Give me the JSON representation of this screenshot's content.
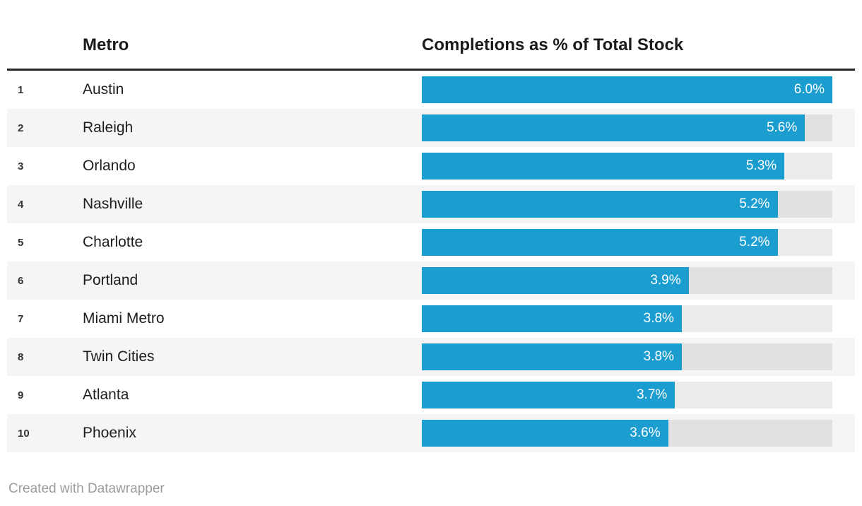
{
  "header": {
    "rank_label": "",
    "metro_label": "Metro",
    "value_label": "Completions as % of Total Stock"
  },
  "footer": {
    "attribution": "Created with Datawrapper"
  },
  "colors": {
    "bar": "#1c9dd0",
    "stripe": "#f5f5f5",
    "track": "rgba(0,0,0,0.08)",
    "rule": "#262626",
    "bar_label_text": "#ffffff"
  },
  "chart_data": {
    "type": "bar",
    "orientation": "horizontal",
    "title": "",
    "xlabel": "Completions as % of Total Stock",
    "ylabel": "Metro",
    "columns": [
      "Metro",
      "Completions as % of Total Stock"
    ],
    "ranks": [
      1,
      2,
      3,
      4,
      5,
      6,
      7,
      8,
      9,
      10
    ],
    "categories": [
      "Austin",
      "Raleigh",
      "Orlando",
      "Nashville",
      "Charlotte",
      "Portland",
      "Miami Metro",
      "Twin Cities",
      "Atlanta",
      "Phoenix"
    ],
    "values": [
      6.0,
      5.6,
      5.3,
      5.2,
      5.2,
      3.9,
      3.8,
      3.8,
      3.7,
      3.6
    ],
    "labels": [
      "6.0%",
      "5.6%",
      "5.3%",
      "5.2%",
      "5.2%",
      "3.9%",
      "3.8%",
      "3.8%",
      "3.7%",
      "3.6%"
    ],
    "xlim": [
      0,
      6.0
    ],
    "grid": false,
    "legend": false,
    "zebra_striping": true
  }
}
